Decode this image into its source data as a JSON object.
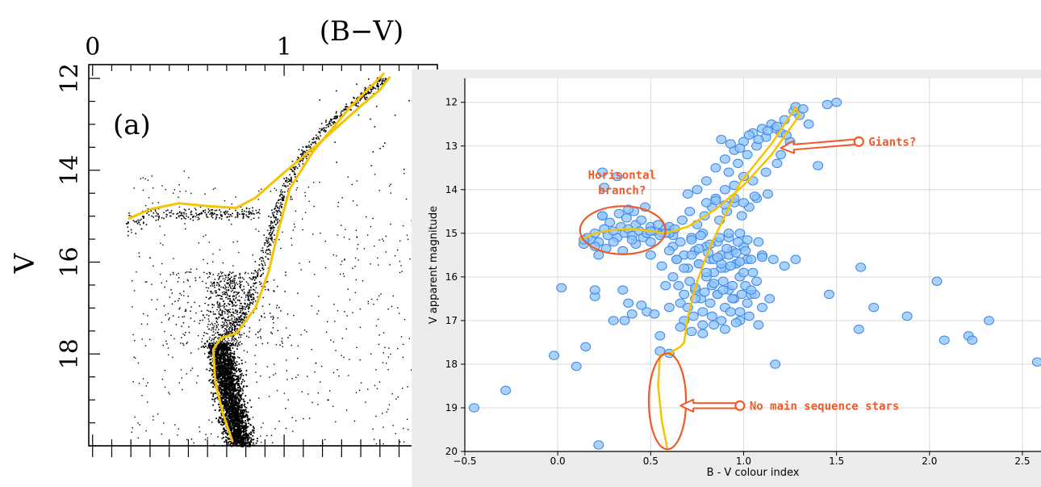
{
  "chart_data": [
    {
      "type": "scatter",
      "panel_label": "(a)",
      "xlabel": "(B−V)",
      "ylabel": "V",
      "x_tick_labels": [
        "0",
        "1"
      ],
      "y_tick_labels": [
        "12",
        "14",
        "16",
        "18"
      ],
      "xlim": [
        -0.02,
        1.8
      ],
      "ylim": [
        20.0,
        11.7
      ],
      "y_inverted": true,
      "x_axis_position": "top",
      "point_color": "#000000",
      "fit_color": "#f5c400",
      "series": [
        {
          "kind": "fiducial-line",
          "x": [
            0.19,
            0.3,
            0.45,
            0.6,
            0.75,
            0.85,
            1.0,
            1.2,
            1.4,
            1.5,
            1.55
          ],
          "y": [
            15.05,
            14.85,
            14.72,
            14.78,
            14.82,
            14.6,
            14.05,
            13.35,
            12.6,
            12.25,
            11.98
          ]
        },
        {
          "kind": "fiducial-line",
          "x": [
            1.52,
            1.35,
            1.15,
            1.03,
            0.97,
            0.92,
            0.85,
            0.75,
            0.67,
            0.63,
            0.64,
            0.68,
            0.73
          ],
          "y": [
            11.9,
            12.6,
            13.6,
            14.4,
            15.3,
            16.2,
            17.0,
            17.55,
            17.65,
            17.9,
            18.6,
            19.3,
            19.9
          ]
        }
      ]
    },
    {
      "type": "scatter",
      "xlabel": "B - V colour index",
      "ylabel": "V apparent magnitude",
      "x_tick_labels": [
        "−0.5",
        "0.0",
        "0.5",
        "1.0",
        "1.5",
        "2.0",
        "2.5"
      ],
      "y_tick_labels": [
        "12",
        "13",
        "14",
        "15",
        "16",
        "17",
        "18",
        "19",
        "20"
      ],
      "x_ticks": [
        -0.5,
        0.0,
        0.5,
        1.0,
        1.5,
        2.0,
        2.5
      ],
      "y_ticks": [
        12,
        13,
        14,
        15,
        16,
        17,
        18,
        19,
        20
      ],
      "xlim": [
        -0.5,
        2.6
      ],
      "ylim": [
        20,
        11.45
      ],
      "y_inverted": true,
      "grid": true,
      "marker_fill": "#8ec3ff",
      "marker_edge": "#3e86e0",
      "fit_color": "#f5c400",
      "annotation_color": "#f05a28",
      "fit_curve": {
        "x": [
          0.12,
          0.2,
          0.3,
          0.4,
          0.5,
          0.58,
          0.7,
          0.85,
          1.0,
          1.15,
          1.3,
          1.28,
          1.15,
          0.98,
          0.9,
          0.82,
          0.75,
          0.7,
          0.68,
          0.66,
          0.6,
          0.55,
          0.54,
          0.56,
          0.59
        ],
        "y": [
          15.15,
          15.0,
          14.92,
          14.9,
          14.95,
          15.0,
          14.85,
          14.45,
          13.9,
          13.2,
          12.3,
          12.12,
          12.95,
          13.85,
          14.6,
          15.3,
          16.1,
          16.9,
          17.5,
          17.6,
          17.75,
          17.8,
          18.5,
          19.3,
          19.95
        ]
      },
      "points": {
        "x": [
          -0.45,
          -0.28,
          -0.02,
          0.1,
          0.15,
          0.22,
          0.24,
          0.3,
          0.36,
          0.38,
          0.4,
          0.48,
          0.2,
          0.02,
          0.55,
          0.25,
          0.32,
          0.14,
          0.16,
          0.18,
          0.2,
          0.22,
          0.25,
          0.27,
          0.3,
          0.32,
          0.34,
          0.36,
          0.38,
          0.4,
          0.42,
          0.44,
          0.46,
          0.48,
          0.5,
          0.52,
          0.54,
          0.56,
          0.58,
          0.6,
          0.62,
          0.2,
          0.24,
          0.28,
          0.33,
          0.37,
          0.41,
          0.45,
          0.3,
          0.26,
          0.35,
          0.42,
          0.5,
          0.38,
          0.22,
          0.47,
          0.6,
          0.62,
          0.64,
          0.66,
          0.68,
          0.7,
          0.72,
          0.74,
          0.76,
          0.78,
          0.8,
          0.82,
          0.84,
          0.86,
          0.88,
          0.9,
          0.92,
          0.94,
          0.96,
          0.98,
          1.0,
          1.02,
          1.05,
          1.08,
          1.1,
          0.62,
          0.65,
          0.68,
          0.71,
          0.74,
          0.77,
          0.8,
          0.83,
          0.86,
          0.89,
          0.92,
          0.95,
          0.98,
          1.01,
          1.04,
          1.07,
          0.63,
          0.67,
          0.71,
          0.75,
          0.79,
          0.83,
          0.87,
          0.91,
          0.95,
          0.99,
          1.03,
          1.07,
          0.6,
          0.64,
          0.68,
          0.72,
          0.76,
          0.8,
          0.84,
          0.88,
          0.92,
          0.96,
          1.0,
          1.04,
          0.66,
          0.7,
          0.74,
          0.78,
          0.82,
          0.86,
          0.9,
          0.94,
          0.98,
          1.02,
          1.06,
          1.1,
          1.14,
          0.68,
          0.73,
          0.78,
          0.83,
          0.88,
          0.93,
          0.98,
          1.03,
          1.08,
          0.7,
          0.75,
          0.8,
          0.85,
          0.9,
          0.95,
          1.0,
          1.05,
          1.12,
          1.18,
          1.2,
          1.25,
          0.72,
          0.77,
          0.82,
          0.87,
          0.92,
          0.97,
          1.02,
          0.74,
          0.79,
          0.84,
          0.89,
          0.94,
          0.99,
          1.04,
          0.8,
          0.85,
          0.9,
          0.95,
          1.0,
          1.06,
          1.13,
          0.88,
          0.93,
          0.98,
          0.76,
          0.81,
          0.86,
          0.91,
          0.96,
          1.01,
          1.1,
          1.16,
          1.22,
          1.28,
          0.85,
          0.9,
          0.95,
          1.0,
          1.05,
          1.1,
          1.15,
          1.2,
          1.25,
          1.3,
          0.92,
          0.97,
          1.02,
          1.07,
          1.12,
          1.17,
          1.22,
          1.27,
          0.88,
          0.93,
          0.98,
          1.03,
          1.08,
          1.13,
          1.18,
          1.23,
          1.28,
          1.32,
          0.45,
          0.52,
          0.58,
          0.6,
          0.66,
          0.72,
          0.78,
          0.84,
          0.9,
          0.96,
          0.5,
          0.4,
          0.35,
          0.56,
          1.46,
          1.5,
          1.63,
          1.7,
          1.88,
          2.04,
          2.08,
          2.21,
          2.23,
          2.32,
          2.58,
          1.62,
          1.45,
          1.35,
          1.4,
          1.17,
          0.55,
          0.6,
          0.14,
          0.58,
          0.24,
          0.2,
          0.5,
          0.55
        ],
        "y": [
          19.0,
          18.6,
          17.8,
          18.05,
          17.6,
          19.85,
          13.6,
          17.0,
          17.0,
          16.6,
          16.85,
          16.8,
          16.45,
          16.25,
          17.35,
          13.95,
          13.7,
          15.25,
          15.1,
          15.15,
          15.0,
          15.2,
          14.9,
          15.05,
          14.95,
          15.1,
          14.85,
          15.0,
          14.9,
          15.05,
          14.8,
          14.95,
          15.1,
          15.0,
          14.85,
          14.95,
          14.8,
          15.0,
          14.9,
          14.85,
          15.05,
          15.3,
          14.6,
          14.75,
          14.55,
          14.65,
          14.5,
          14.7,
          15.2,
          15.35,
          15.4,
          15.25,
          15.2,
          14.45,
          15.5,
          14.4,
          15.0,
          15.3,
          15.6,
          15.2,
          15.5,
          15.8,
          15.1,
          15.4,
          15.7,
          15.0,
          15.3,
          15.6,
          15.9,
          15.2,
          15.5,
          15.8,
          15.1,
          15.4,
          15.7,
          15.0,
          15.3,
          15.6,
          15.9,
          15.2,
          15.5,
          16.0,
          16.2,
          16.4,
          16.1,
          16.3,
          16.5,
          16.0,
          16.2,
          16.4,
          16.1,
          16.3,
          16.5,
          16.0,
          16.2,
          16.4,
          16.1,
          14.9,
          14.7,
          14.5,
          14.8,
          14.6,
          14.4,
          14.7,
          14.5,
          14.3,
          14.6,
          14.4,
          14.2,
          15.4,
          15.6,
          15.8,
          15.5,
          15.7,
          15.9,
          15.6,
          15.8,
          15.5,
          15.7,
          15.9,
          15.6,
          16.6,
          16.7,
          16.5,
          16.8,
          16.6,
          16.4,
          16.7,
          16.5,
          16.8,
          16.6,
          16.4,
          16.7,
          16.5,
          17.0,
          16.9,
          17.1,
          16.9,
          17.0,
          16.8,
          17.0,
          16.9,
          17.1,
          14.1,
          14.0,
          13.8,
          14.2,
          14.0,
          13.9,
          13.7,
          13.8,
          13.6,
          13.4,
          13.2,
          13.0,
          15.15,
          15.05,
          15.25,
          15.1,
          15.0,
          15.2,
          15.15,
          16.25,
          16.35,
          16.15,
          16.3,
          16.2,
          16.4,
          16.3,
          14.3,
          14.25,
          14.35,
          14.2,
          14.3,
          14.15,
          14.1,
          15.7,
          15.75,
          15.65,
          15.35,
          15.45,
          15.55,
          15.35,
          15.45,
          15.4,
          15.55,
          15.6,
          15.75,
          15.6,
          13.5,
          13.3,
          13.1,
          12.9,
          12.7,
          12.6,
          12.5,
          12.7,
          12.9,
          12.3,
          13.6,
          13.4,
          13.2,
          13.0,
          12.8,
          12.6,
          12.4,
          12.2,
          12.85,
          12.95,
          13.05,
          12.75,
          12.85,
          12.65,
          12.55,
          12.75,
          12.1,
          12.15,
          16.65,
          16.85,
          16.2,
          16.7,
          17.15,
          17.25,
          17.3,
          17.1,
          17.2,
          17.05,
          15.5,
          15.15,
          16.3,
          15.75,
          16.4,
          12.0,
          15.78,
          16.7,
          16.9,
          16.1,
          17.45,
          17.35,
          17.45,
          17.0,
          17.95,
          17.2,
          12.05,
          12.5,
          13.45,
          18.0,
          17.7,
          17.75,
          15.15,
          15.0,
          14.6,
          16.3,
          14.95,
          15.05
        ]
      },
      "annotations": [
        {
          "text": "Giants?",
          "arrow_from": [
            1.62,
            12.9
          ],
          "arrow_to": [
            1.2,
            13.05
          ]
        },
        {
          "text": "Horisontal branch?",
          "ellipse_center": [
            0.35,
            14.93
          ],
          "ellipse_radius": [
            0.23,
            0.55
          ]
        },
        {
          "text": "No main sequence stars",
          "arrow_from": [
            0.98,
            18.95
          ],
          "arrow_to": [
            0.66,
            18.95
          ],
          "ellipse_center": [
            0.59,
            18.85
          ],
          "ellipse_radius": [
            0.1,
            1.1
          ]
        }
      ]
    }
  ]
}
